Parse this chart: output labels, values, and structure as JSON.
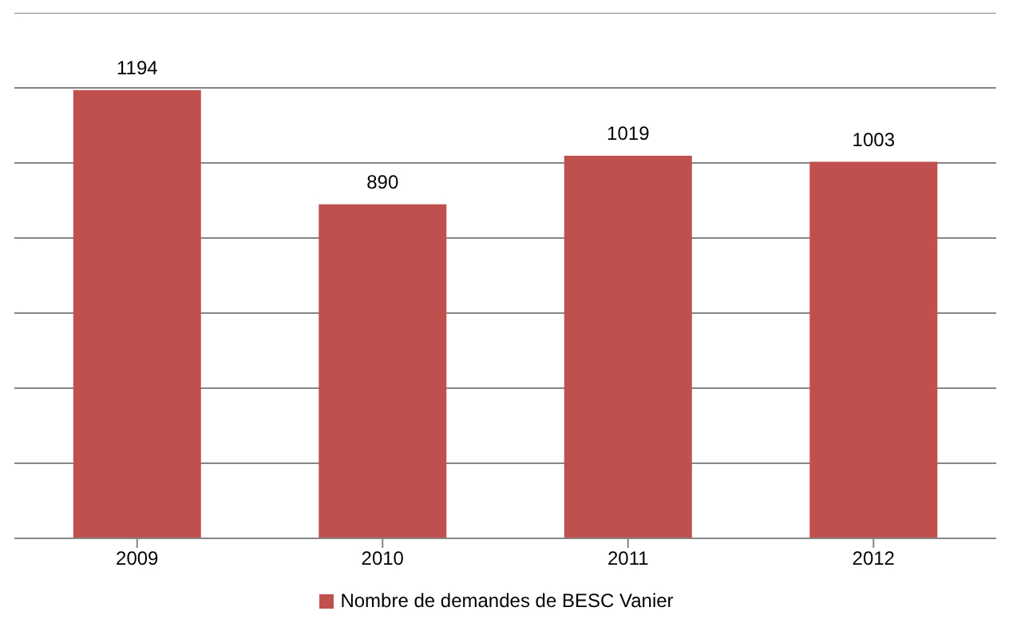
{
  "chart_data": {
    "type": "bar",
    "categories": [
      "2009",
      "2010",
      "2011",
      "2012"
    ],
    "series": [
      {
        "name": "Nombre de demandes de BESC Vanier",
        "color": "#c0504d",
        "values": [
          1194,
          890,
          1019,
          1003
        ]
      }
    ],
    "ylim": [
      0,
      1400
    ],
    "tick_labels": "x",
    "grid": "y",
    "legend": "bottom",
    "data_labels": true
  }
}
